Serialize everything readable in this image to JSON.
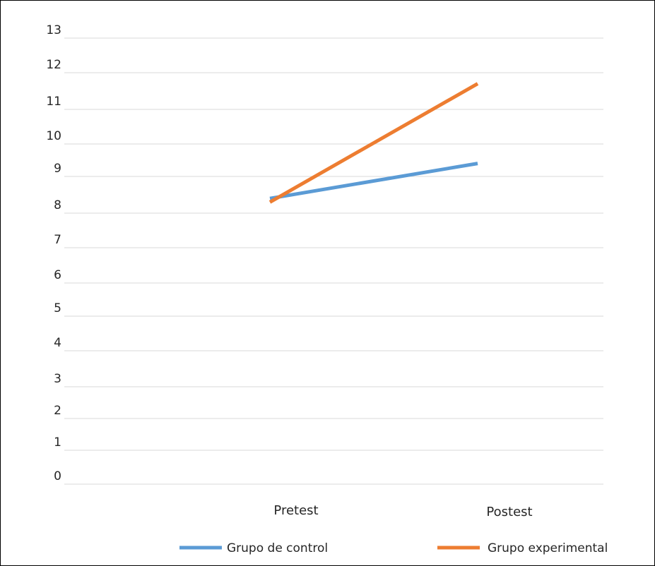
{
  "chart_data": {
    "type": "line",
    "categories": [
      "Pretest",
      "Postest"
    ],
    "y_tick_labels": [
      "0",
      "1",
      "2",
      "3",
      "4",
      "5",
      "6",
      "7",
      "8",
      "9",
      "10",
      "11",
      "12",
      "13"
    ],
    "ylim": [
      0,
      13
    ],
    "grid": true,
    "legend_position": "bottom",
    "series": [
      {
        "name": "Grupo de control",
        "values": [
          8.4,
          9.4
        ],
        "color": "#5B9BD5"
      },
      {
        "name": "Grupo experimental",
        "values": [
          8.3,
          11.7
        ],
        "color": "#ED7D31"
      }
    ]
  }
}
